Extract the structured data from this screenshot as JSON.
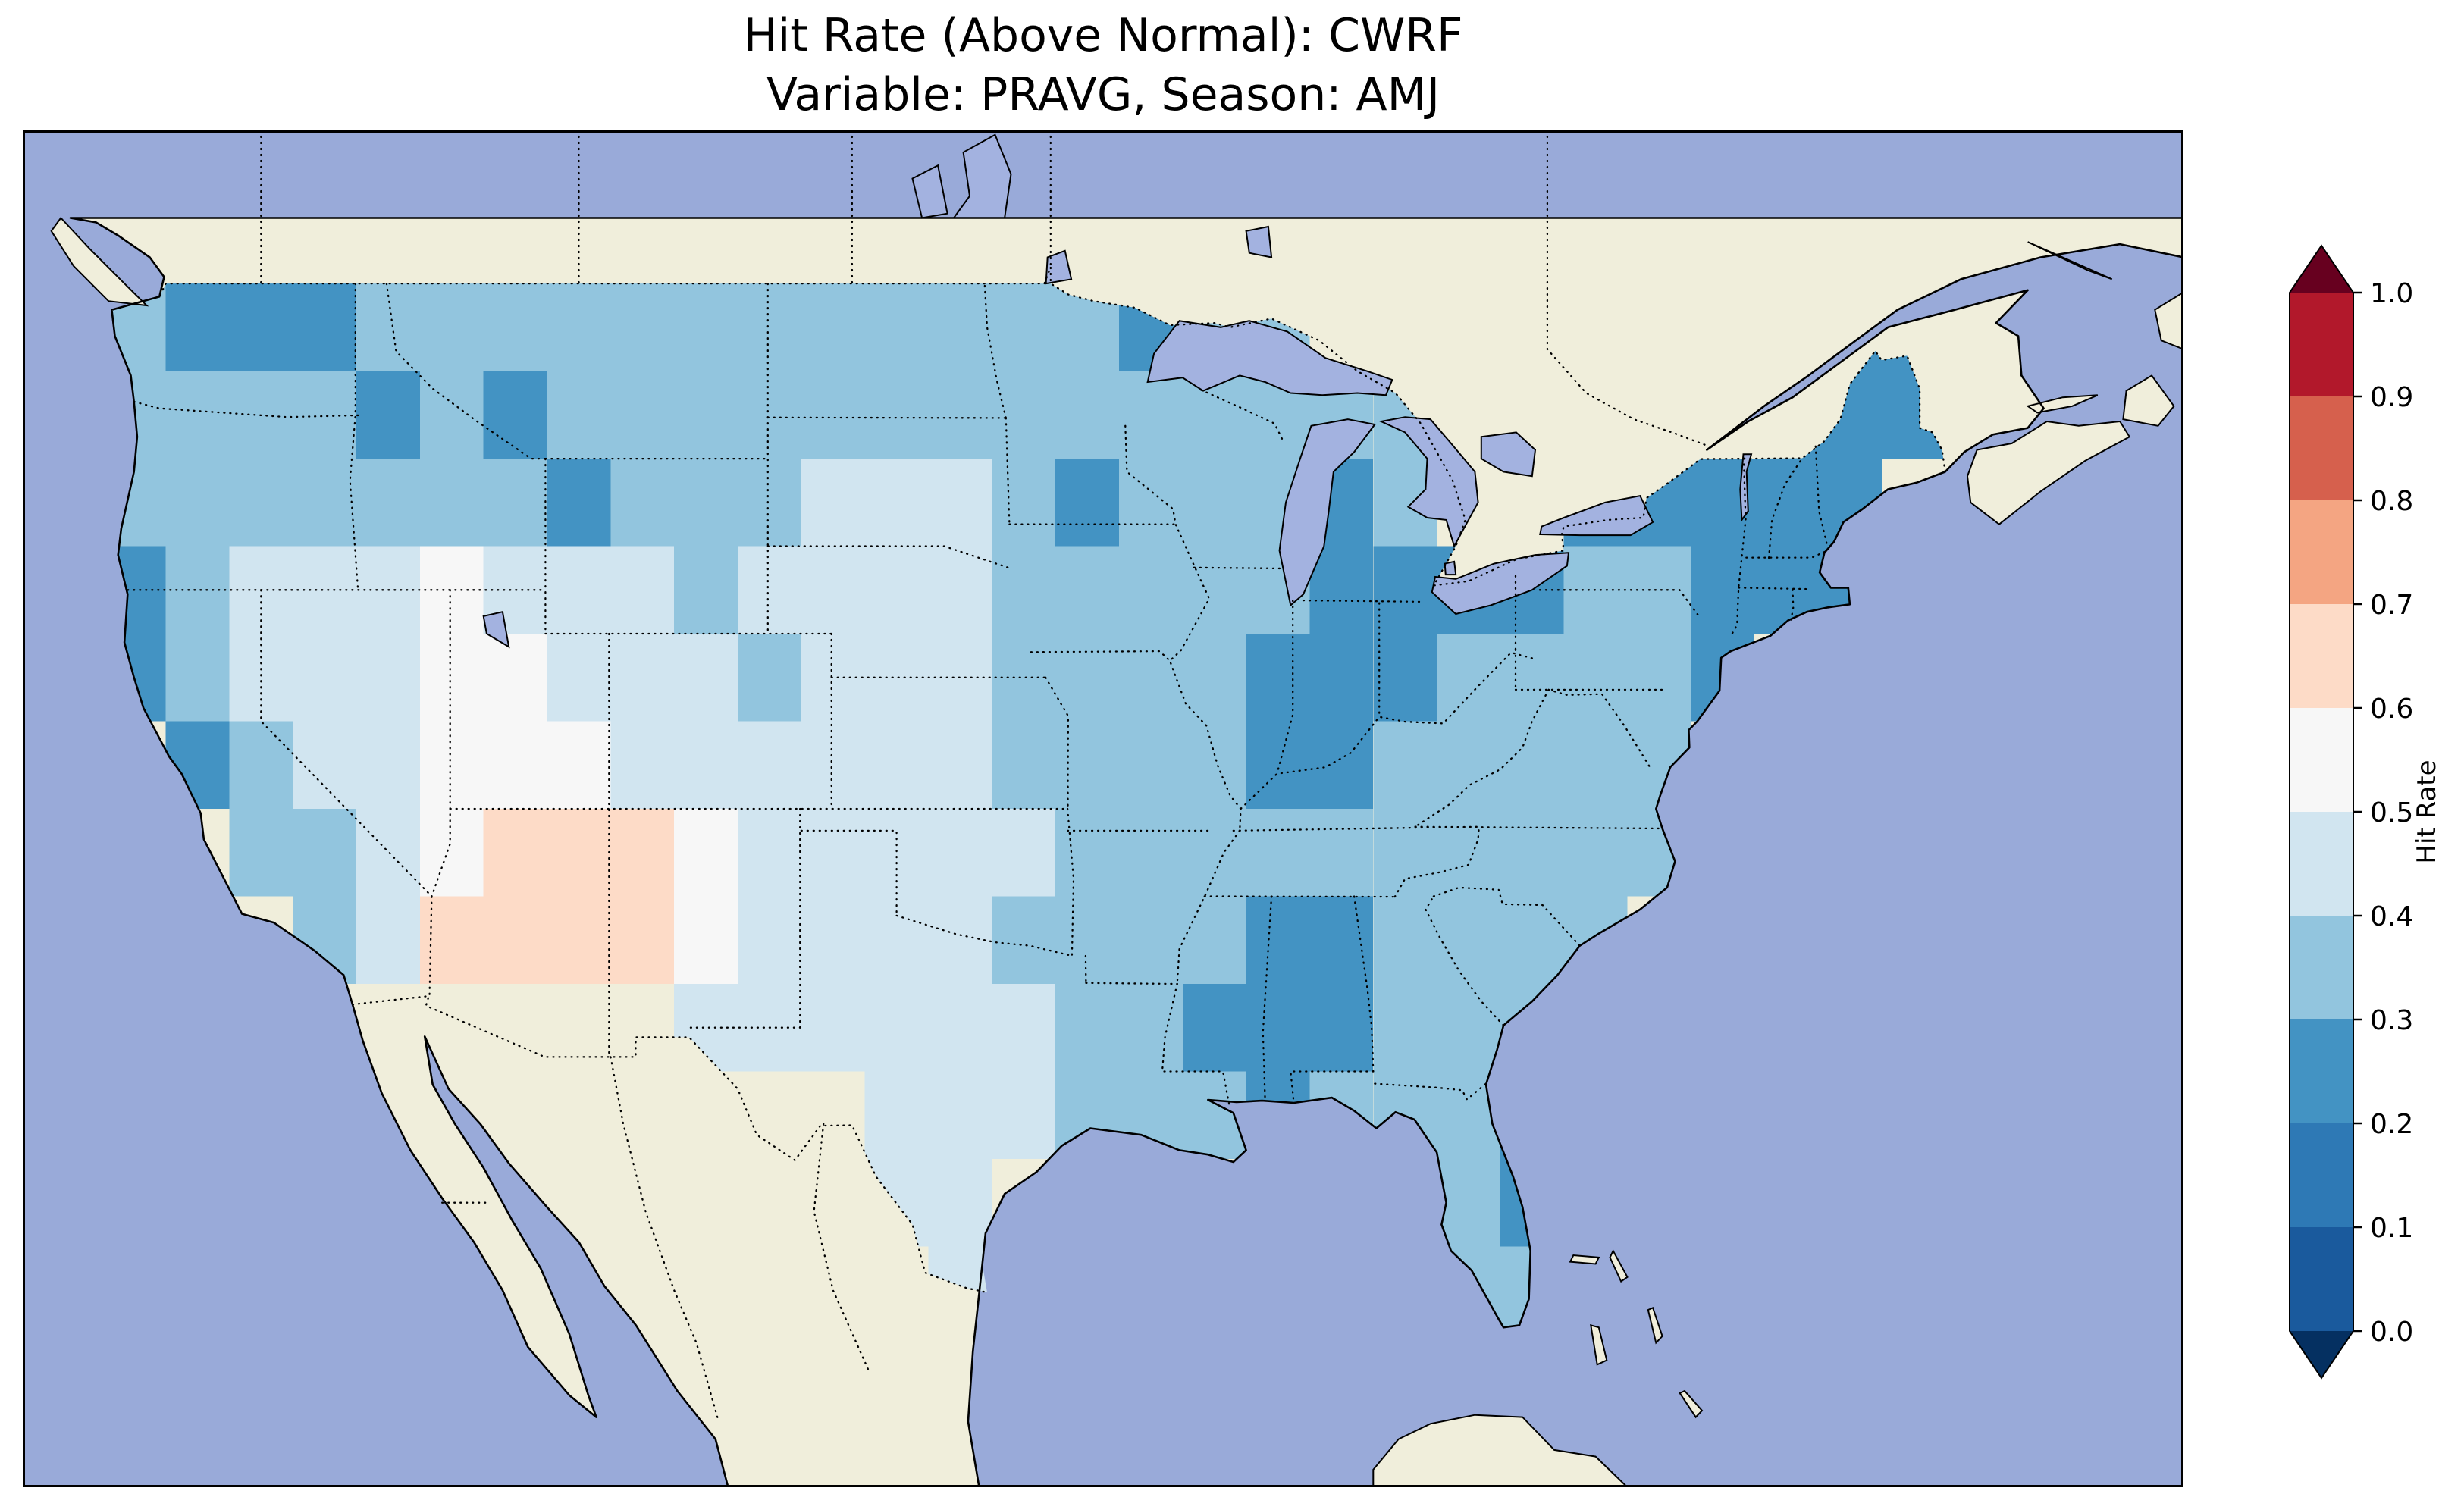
{
  "figure": {
    "title_line1": "Hit Rate (Above Normal): CWRF",
    "title_line2": "Variable: PRAVG, Season: AMJ"
  },
  "colorbar": {
    "label": "Hit Rate",
    "ticks": [
      "1.0",
      "0.9",
      "0.8",
      "0.7",
      "0.6",
      "0.5",
      "0.4",
      "0.3",
      "0.2",
      "0.1",
      "0.0"
    ],
    "bin_colors": [
      "#1a5a9d",
      "#2e79b5",
      "#4393c3",
      "#92c5de",
      "#d1e5f0",
      "#f7f7f7",
      "#fddbc7",
      "#f4a582",
      "#d6604d",
      "#b2182b"
    ],
    "under_color": "#053061",
    "over_color": "#67001f"
  },
  "map_colors": {
    "ocean": "#99aad9",
    "land": "#f0eedb",
    "lake": "#a3b2e0",
    "coastline": "#000000"
  },
  "chart_data": {
    "type": "heatmap",
    "metric": "Hit Rate (Above Normal)",
    "model": "CWRF",
    "variable": "PRAVG",
    "season": "AMJ",
    "colorbar_label": "Hit Rate",
    "value_range": [
      0.0,
      1.0
    ],
    "colorbar_ticks": [
      0.0,
      0.1,
      0.2,
      0.3,
      0.4,
      0.5,
      0.6,
      0.7,
      0.8,
      0.9,
      1.0
    ],
    "grid": {
      "lon_west_edge": -125,
      "lon_step_deg": 2,
      "n_cols": 30,
      "lat_north_edge": 49,
      "lat_step_deg": -2,
      "n_rows": 12,
      "description": "Approximate hit-rate values on a 2-degree grid over the contiguous US, rows ordered north to south; null = outside the verification domain"
    },
    "values": [
      [
        0.35,
        0.25,
        0.25,
        0.25,
        0.35,
        0.35,
        0.35,
        0.35,
        0.35,
        0.35,
        0.35,
        0.35,
        0.35,
        0.35,
        0.35,
        0.35,
        0.25,
        0.35,
        0.35,
        null,
        null,
        null,
        null,
        null,
        null,
        null,
        null,
        0.25,
        0.25,
        null
      ],
      [
        0.35,
        0.35,
        0.35,
        0.35,
        0.25,
        0.35,
        0.25,
        0.35,
        0.35,
        0.35,
        0.35,
        0.35,
        0.35,
        0.35,
        0.35,
        0.35,
        0.35,
        0.35,
        0.35,
        0.35,
        0.35,
        null,
        null,
        null,
        null,
        0.25,
        0.25,
        0.25,
        0.25,
        null
      ],
      [
        0.35,
        0.35,
        0.35,
        0.35,
        0.35,
        0.35,
        0.35,
        0.25,
        0.35,
        0.35,
        0.35,
        0.45,
        0.45,
        0.45,
        0.35,
        0.25,
        0.35,
        0.35,
        0.35,
        0.25,
        0.35,
        null,
        null,
        0.25,
        0.25,
        0.25,
        0.25,
        0.25,
        null,
        null
      ],
      [
        0.25,
        0.35,
        0.45,
        0.45,
        0.45,
        0.55,
        0.45,
        0.45,
        0.45,
        0.35,
        0.45,
        0.45,
        0.45,
        0.45,
        0.35,
        0.35,
        0.35,
        0.35,
        0.35,
        0.25,
        0.25,
        0.25,
        0.25,
        0.35,
        0.35,
        0.25,
        0.25,
        0.25,
        null,
        null
      ],
      [
        0.25,
        0.35,
        0.45,
        0.45,
        0.45,
        0.55,
        0.55,
        0.45,
        0.45,
        0.45,
        0.35,
        0.45,
        0.45,
        0.45,
        0.35,
        0.35,
        0.35,
        0.35,
        0.25,
        0.25,
        0.25,
        0.35,
        0.35,
        0.35,
        0.35,
        0.25,
        null,
        null,
        null,
        null
      ],
      [
        null,
        0.25,
        0.35,
        0.45,
        0.45,
        0.55,
        0.55,
        0.55,
        0.45,
        0.45,
        0.45,
        0.45,
        0.45,
        0.45,
        0.35,
        0.35,
        0.35,
        0.35,
        0.25,
        0.25,
        0.35,
        0.35,
        0.35,
        0.35,
        0.35,
        null,
        null,
        null,
        null,
        null
      ],
      [
        null,
        null,
        0.35,
        0.35,
        0.45,
        0.55,
        0.65,
        0.65,
        0.65,
        0.55,
        0.45,
        0.45,
        0.45,
        0.45,
        0.45,
        0.35,
        0.35,
        0.35,
        0.35,
        0.35,
        0.35,
        0.35,
        0.35,
        0.35,
        0.35,
        null,
        null,
        null,
        null,
        null
      ],
      [
        null,
        null,
        null,
        0.35,
        0.45,
        0.65,
        0.65,
        0.65,
        0.65,
        0.55,
        0.45,
        0.45,
        0.45,
        0.45,
        0.35,
        0.35,
        0.35,
        0.35,
        0.25,
        0.25,
        0.35,
        0.35,
        0.35,
        0.35,
        null,
        null,
        null,
        null,
        null,
        null
      ],
      [
        null,
        null,
        null,
        null,
        null,
        null,
        null,
        null,
        null,
        0.45,
        0.45,
        0.45,
        0.45,
        0.45,
        0.45,
        0.35,
        0.35,
        0.25,
        0.25,
        0.25,
        0.35,
        0.35,
        0.35,
        null,
        null,
        null,
        null,
        null,
        null,
        null
      ],
      [
        null,
        null,
        null,
        null,
        null,
        null,
        null,
        null,
        null,
        null,
        null,
        null,
        0.45,
        0.45,
        0.45,
        0.35,
        0.35,
        0.35,
        0.25,
        0.35,
        0.35,
        0.35,
        0.25,
        null,
        null,
        null,
        null,
        null,
        null,
        null
      ],
      [
        null,
        null,
        null,
        null,
        null,
        null,
        null,
        null,
        null,
        null,
        null,
        null,
        0.45,
        0.45,
        null,
        null,
        null,
        null,
        null,
        null,
        null,
        0.35,
        0.25,
        null,
        null,
        null,
        null,
        null,
        null,
        null
      ],
      [
        null,
        null,
        null,
        null,
        null,
        null,
        null,
        null,
        null,
        null,
        null,
        null,
        null,
        0.45,
        null,
        null,
        null,
        null,
        null,
        null,
        null,
        0.35,
        0.35,
        null,
        null,
        null,
        null,
        null,
        null,
        null
      ]
    ]
  }
}
